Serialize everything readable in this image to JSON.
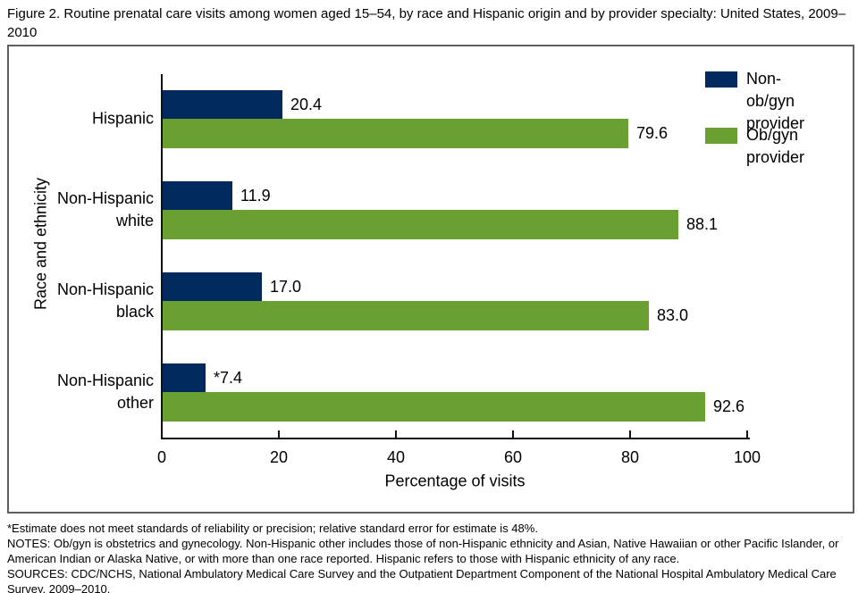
{
  "figure_title": "Figure 2. Routine prenatal care visits among women aged 15–54, by race and Hispanic origin and by provider specialty: United States, 2009–2010",
  "chart_data": {
    "type": "bar",
    "orientation": "horizontal",
    "xlabel": "Percentage of visits",
    "ylabel": "Race and ethnicity",
    "xlim": [
      0,
      100
    ],
    "xticks": [
      0,
      20,
      40,
      60,
      80,
      100
    ],
    "grid": false,
    "legend_position": "top-right-inside",
    "categories": [
      "Hispanic",
      "Non-Hispanic white",
      "Non-Hispanic black",
      "Non-Hispanic other"
    ],
    "category_display": [
      "Hispanic",
      "Non-Hispanic\nwhite",
      "Non-Hispanic\nblack",
      "Non-Hispanic\nother"
    ],
    "series": [
      {
        "name": "Non-ob/gyn provider",
        "color": "#002a5e",
        "values": [
          20.4,
          11.9,
          17.0,
          7.4
        ],
        "value_labels": [
          "20.4",
          "11.9",
          "17.0",
          "*7.4"
        ]
      },
      {
        "name": "Ob/gyn provider",
        "color": "#6aa032",
        "values": [
          79.6,
          88.1,
          83.0,
          92.6
        ],
        "value_labels": [
          "79.6",
          "88.1",
          "83.0",
          "92.6"
        ]
      }
    ]
  },
  "legend": {
    "items": [
      {
        "label": "Non-ob/gyn\nprovider",
        "color": "#002a5e"
      },
      {
        "label": "Ob/gyn\nprovider",
        "color": "#6aa032"
      }
    ]
  },
  "footnotes": [
    "*Estimate does not meet standards of reliability or precision; relative standard error for estimate is 48%.",
    "NOTES: Ob/gyn is obstetrics and gynecology. Non-Hispanic other includes those of non-Hispanic ethnicity and Asian, Native Hawaiian or other Pacific Islander, or American Indian or Alaska Native, or with more than one race reported. Hispanic refers to those with Hispanic ethnicity of any race.",
    "SOURCES: CDC/NCHS, National Ambulatory Medical Care Survey and the Outpatient Department Component of the National Hospital Ambulatory Medical Care Survey, 2009–2010."
  ]
}
